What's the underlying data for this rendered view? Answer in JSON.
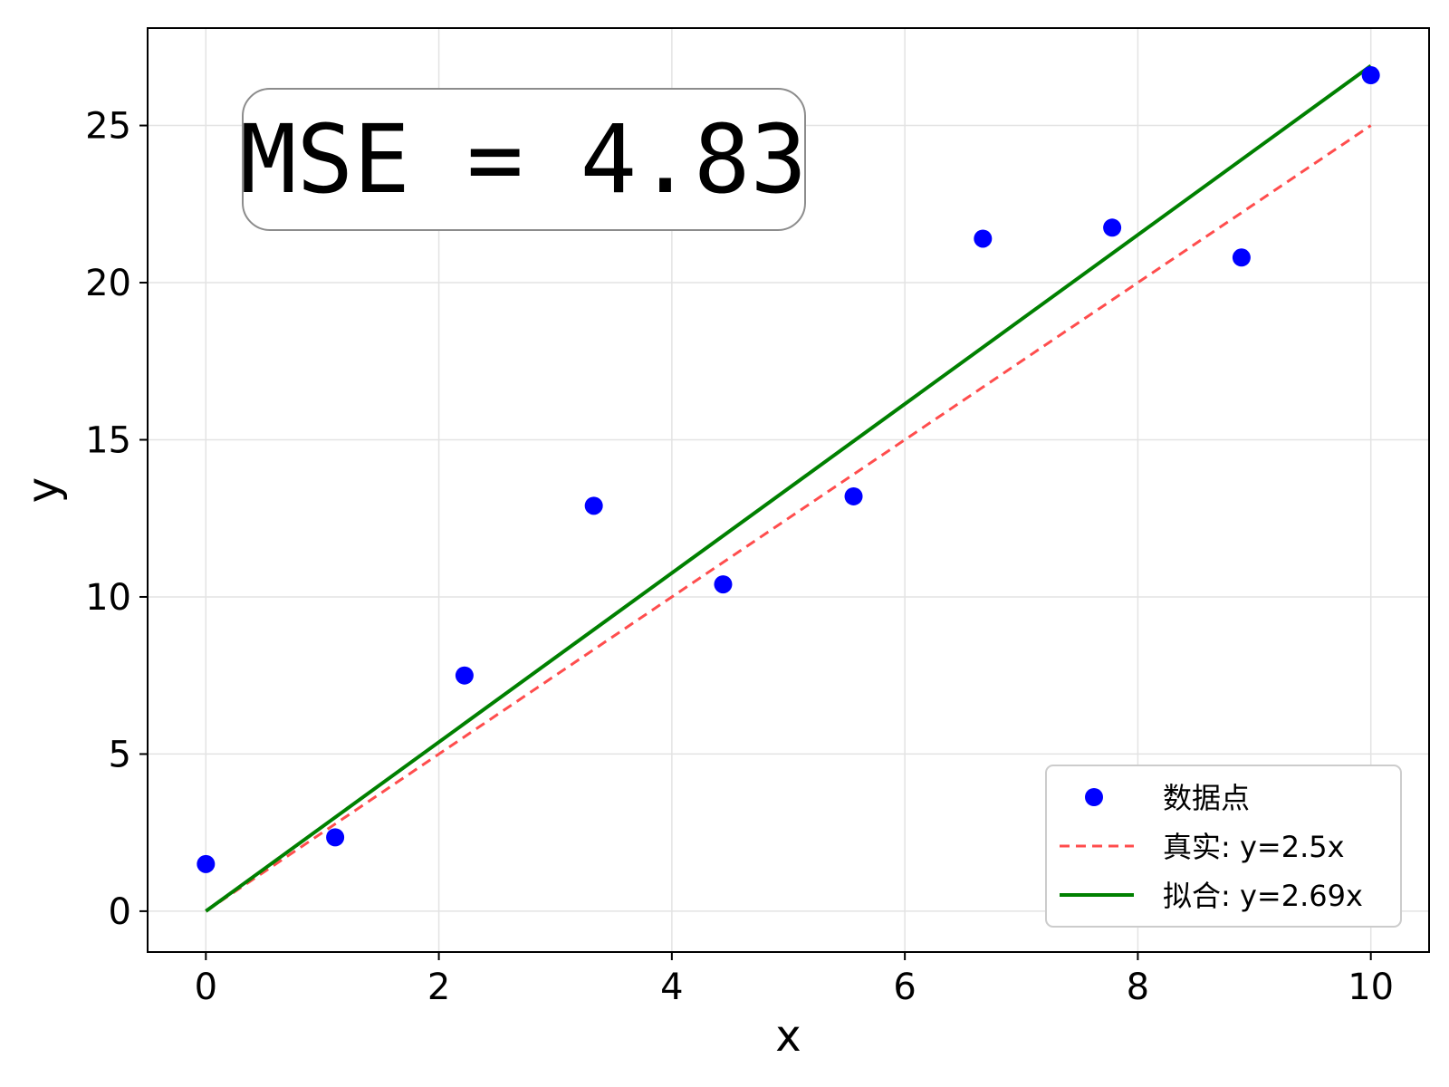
{
  "chart_data": {
    "type": "scatter",
    "title": "",
    "xlabel": "x",
    "ylabel": "y",
    "xlim": [
      -0.5,
      10.5
    ],
    "ylim": [
      -1.3,
      28.1
    ],
    "xticks": [
      0,
      2,
      4,
      6,
      8,
      10
    ],
    "yticks": [
      0,
      5,
      10,
      15,
      20,
      25
    ],
    "grid": true,
    "legend_position": "lower-right",
    "annotation": "MSE = 4.83",
    "points": {
      "name": "数据点",
      "color": "#0000ff",
      "x": [
        0,
        1.11,
        2.22,
        3.33,
        4.44,
        5.56,
        6.67,
        7.78,
        8.89,
        10
      ],
      "y": [
        1.5,
        2.35,
        7.5,
        12.9,
        10.4,
        13.2,
        21.4,
        21.75,
        20.8,
        26.6
      ]
    },
    "lines": [
      {
        "name": "真实: y=2.5x",
        "color": "#ff4d4d",
        "style": "dashed",
        "slope": 2.5,
        "x_range": [
          0,
          10
        ]
      },
      {
        "name": "拟合: y=2.69x",
        "color": "#008000",
        "style": "solid",
        "slope": 2.69,
        "x_range": [
          0,
          10
        ]
      }
    ]
  }
}
